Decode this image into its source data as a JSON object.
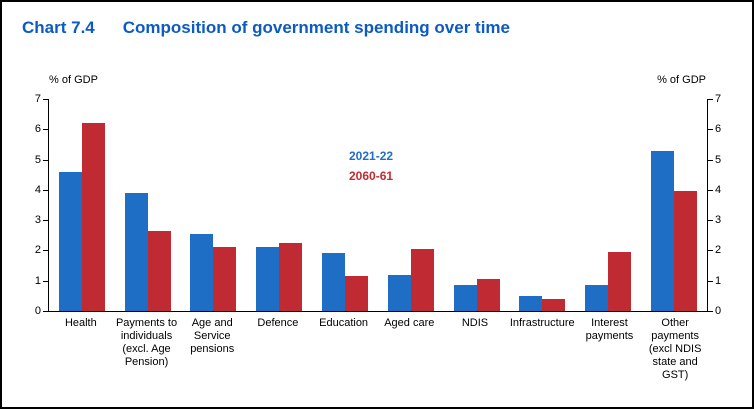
{
  "header": {
    "chart_label": "Chart 7.4",
    "title": "Composition of government spending over time"
  },
  "colors": {
    "title": "#0b5bc2",
    "axis": "#000000"
  },
  "chart_data": {
    "type": "bar",
    "title": "Composition of government spending over time",
    "ylabel_left": "% of GDP",
    "ylabel_right": "% of GDP",
    "ylim": [
      0,
      7
    ],
    "ytick_step": 1,
    "grid": false,
    "legend_position": "inside-center",
    "categories": [
      "Health",
      "Payments to individuals (excl. Age Pension)",
      "Age and Service pensions",
      "Defence",
      "Education",
      "Aged care",
      "NDIS",
      "Infrastructure",
      "Interest payments",
      "Other payments (excl NDIS state and GST)"
    ],
    "series": [
      {
        "name": "2021-22",
        "color": "#1f6ec6",
        "values": [
          4.6,
          3.9,
          2.55,
          2.1,
          1.9,
          1.2,
          0.85,
          0.5,
          0.85,
          5.3
        ]
      },
      {
        "name": "2060-61",
        "color": "#c02b33",
        "values": [
          6.2,
          2.65,
          2.1,
          2.25,
          1.15,
          2.05,
          1.05,
          0.4,
          1.95,
          3.95
        ]
      }
    ]
  }
}
